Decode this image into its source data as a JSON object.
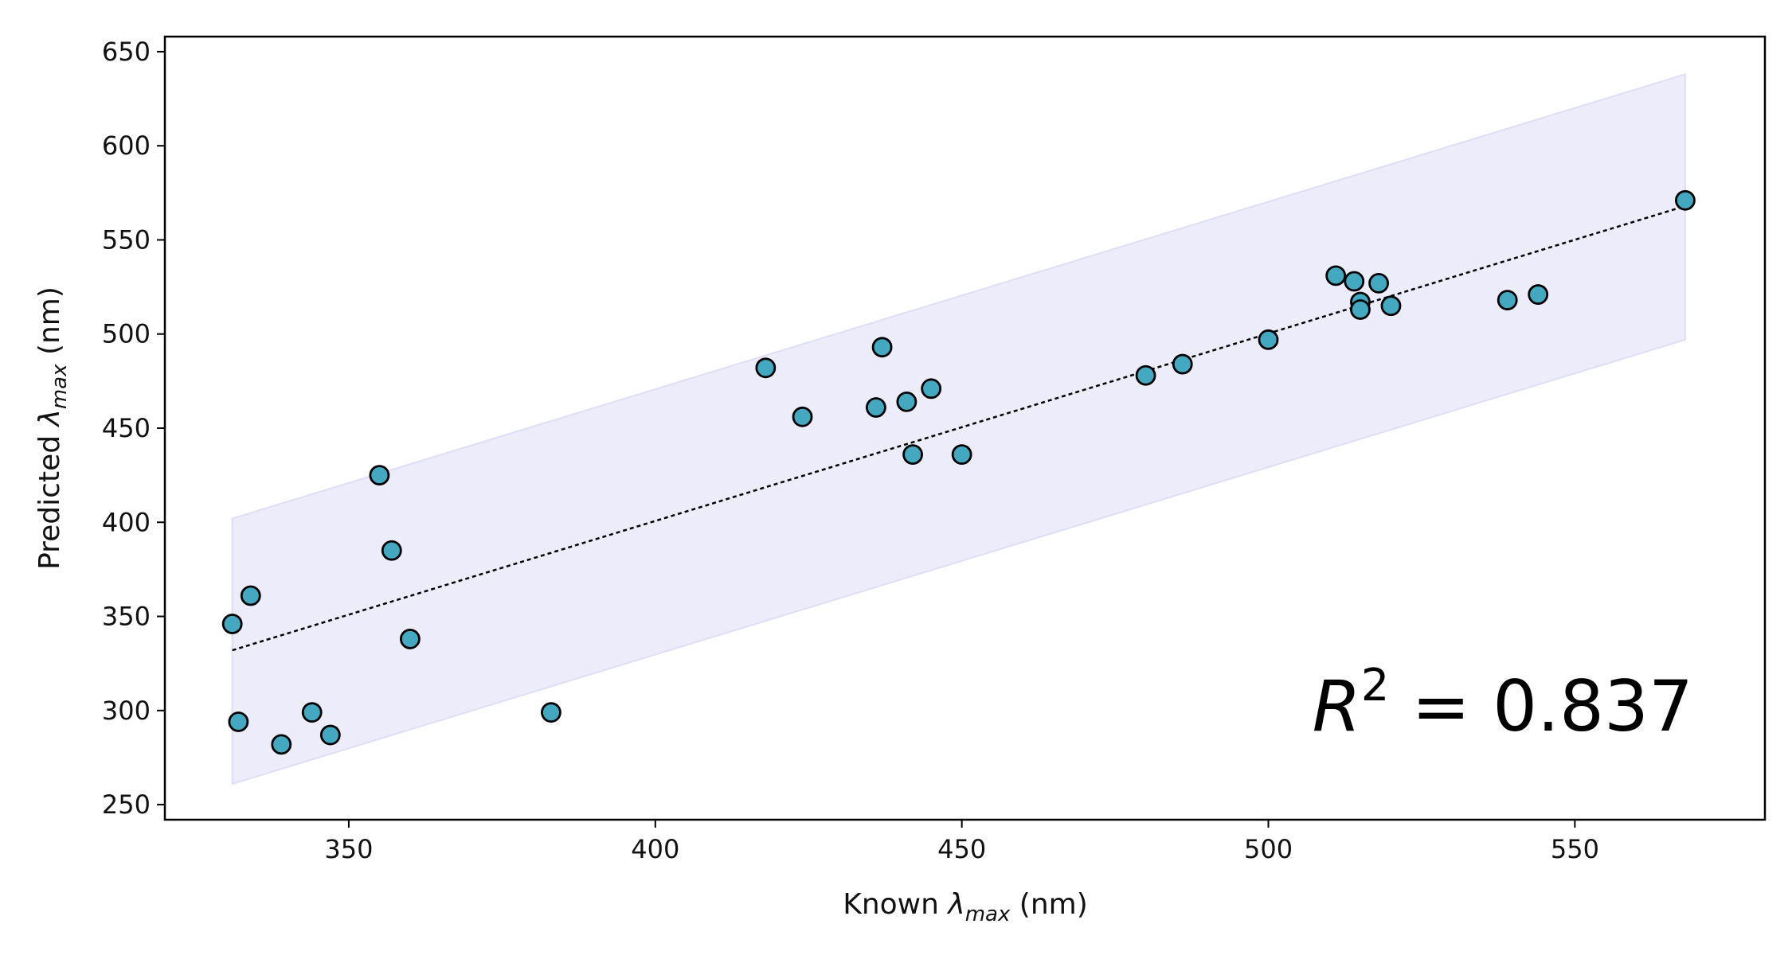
{
  "chart_data": {
    "type": "scatter",
    "title": "",
    "xlabel": {
      "prefix": "Known ",
      "symbol": "λ",
      "sub": "max",
      "suffix": " (nm)"
    },
    "ylabel": {
      "prefix": "Predicted ",
      "symbol": "λ",
      "sub": "max",
      "suffix": " (nm)"
    },
    "xlim": [
      320,
      581
    ],
    "ylim": [
      242,
      658
    ],
    "xticks": [
      350,
      400,
      450,
      500,
      550
    ],
    "yticks": [
      250,
      300,
      350,
      400,
      450,
      500,
      550,
      600,
      650
    ],
    "grid": false,
    "points": [
      {
        "x": 331,
        "y": 346
      },
      {
        "x": 332,
        "y": 294
      },
      {
        "x": 334,
        "y": 361
      },
      {
        "x": 339,
        "y": 282
      },
      {
        "x": 344,
        "y": 299
      },
      {
        "x": 347,
        "y": 287
      },
      {
        "x": 355,
        "y": 425
      },
      {
        "x": 357,
        "y": 385
      },
      {
        "x": 360,
        "y": 338
      },
      {
        "x": 383,
        "y": 299
      },
      {
        "x": 418,
        "y": 482
      },
      {
        "x": 424,
        "y": 456
      },
      {
        "x": 436,
        "y": 461
      },
      {
        "x": 437,
        "y": 493
      },
      {
        "x": 441,
        "y": 464
      },
      {
        "x": 442,
        "y": 436
      },
      {
        "x": 445,
        "y": 471
      },
      {
        "x": 450,
        "y": 436
      },
      {
        "x": 480,
        "y": 478
      },
      {
        "x": 486,
        "y": 484
      },
      {
        "x": 500,
        "y": 497
      },
      {
        "x": 511,
        "y": 531
      },
      {
        "x": 514,
        "y": 528
      },
      {
        "x": 515,
        "y": 517
      },
      {
        "x": 515,
        "y": 513
      },
      {
        "x": 518,
        "y": 527
      },
      {
        "x": 520,
        "y": 515
      },
      {
        "x": 539,
        "y": 518
      },
      {
        "x": 544,
        "y": 521
      },
      {
        "x": 568,
        "y": 571
      }
    ],
    "fit_line": {
      "x": [
        331,
        568
      ],
      "y": [
        332,
        568
      ]
    },
    "band": {
      "x": [
        331,
        568
      ],
      "upper": [
        402,
        638
      ],
      "lower": [
        261,
        497
      ]
    },
    "r2_text": "0.837",
    "colors": {
      "point_fill": "#44a9c0",
      "point_edge": "#000000",
      "band_fill": "#ececfb",
      "band_edge": "#dedef7",
      "fit_line": "#000000"
    }
  }
}
